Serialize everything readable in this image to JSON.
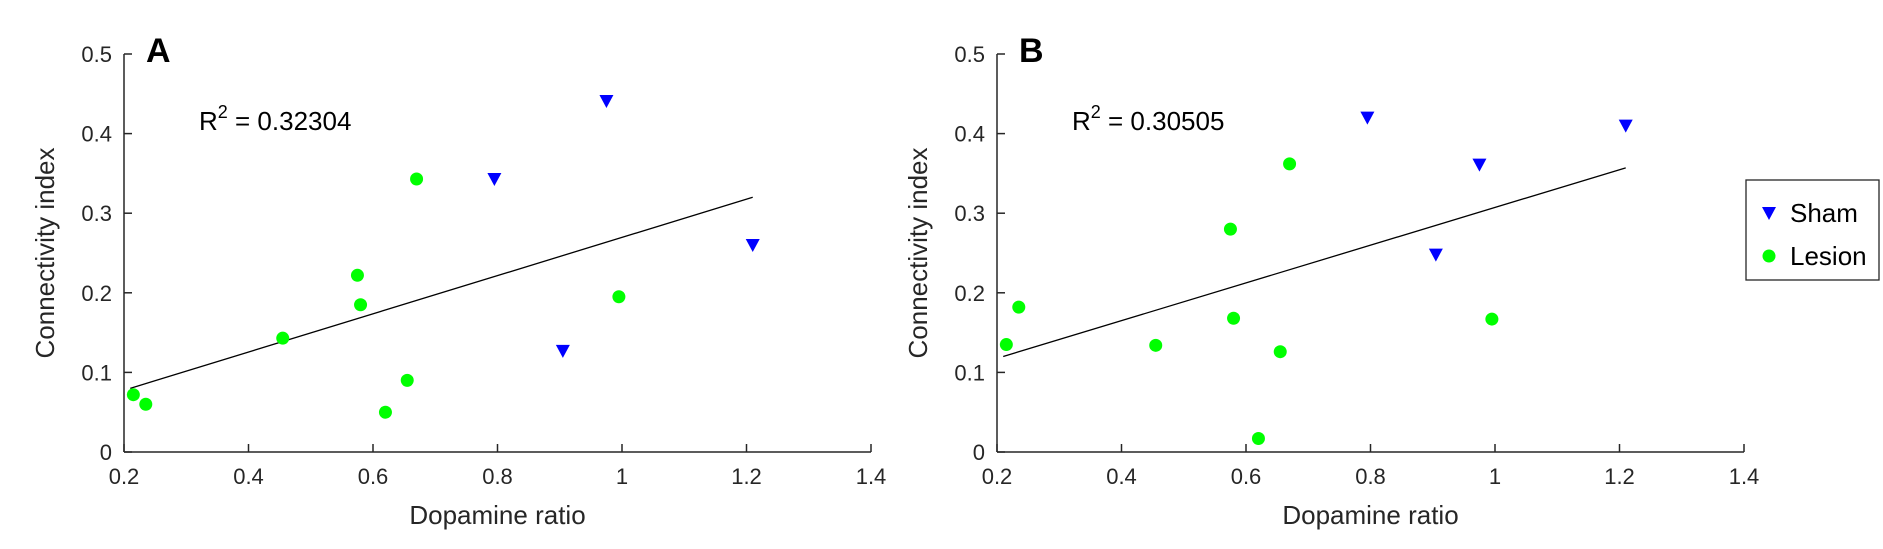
{
  "colors": {
    "sham": "#0000ff",
    "lesion": "#00ff00",
    "fit": "#000000",
    "axis": "#262626"
  },
  "legend": {
    "placement": "right-outside",
    "entries": [
      {
        "name": "Sham",
        "marker": "triangle-down"
      },
      {
        "name": "Lesion",
        "marker": "circle"
      }
    ]
  },
  "chart_data": [
    {
      "type": "scatter",
      "panel": "A",
      "xlabel": "Dopamine ratio",
      "ylabel": "Connectivity index",
      "xlim": [
        0.2,
        1.4
      ],
      "ylim": [
        0,
        0.5
      ],
      "xticks": [
        "0.2",
        "0.4",
        "0.6",
        "0.8",
        "1",
        "1.2",
        "1.4"
      ],
      "yticks": [
        "0",
        "0.1",
        "0.2",
        "0.3",
        "0.4",
        "0.5"
      ],
      "r2_label": "R",
      "r2_sup": "2",
      "r2_value": " = 0.32304",
      "fit": {
        "x": [
          0.21,
          1.21
        ],
        "y": [
          0.08,
          0.32
        ]
      },
      "series": [
        {
          "name": "Sham",
          "x": [
            0.795,
            0.975,
            0.905,
            1.21
          ],
          "y": [
            0.343,
            0.441,
            0.127,
            0.26
          ]
        },
        {
          "name": "Lesion",
          "x": [
            0.215,
            0.235,
            0.455,
            0.575,
            0.58,
            0.62,
            0.655,
            0.67,
            0.995
          ],
          "y": [
            0.072,
            0.06,
            0.143,
            0.222,
            0.185,
            0.05,
            0.09,
            0.343,
            0.195
          ]
        }
      ]
    },
    {
      "type": "scatter",
      "panel": "B",
      "xlabel": "Dopamine ratio",
      "ylabel": "Connectivity index",
      "xlim": [
        0.2,
        1.4
      ],
      "ylim": [
        0,
        0.5
      ],
      "xticks": [
        "0.2",
        "0.4",
        "0.6",
        "0.8",
        "1",
        "1.2",
        "1.4"
      ],
      "yticks": [
        "0",
        "0.1",
        "0.2",
        "0.3",
        "0.4",
        "0.5"
      ],
      "r2_label": "R",
      "r2_sup": "2",
      "r2_value": " = 0.30505",
      "fit": {
        "x": [
          0.21,
          1.21
        ],
        "y": [
          0.12,
          0.357
        ]
      },
      "series": [
        {
          "name": "Sham",
          "x": [
            0.795,
            0.975,
            0.905,
            1.21
          ],
          "y": [
            0.42,
            0.361,
            0.248,
            0.41
          ]
        },
        {
          "name": "Lesion",
          "x": [
            0.215,
            0.235,
            0.455,
            0.575,
            0.58,
            0.62,
            0.655,
            0.67,
            0.995
          ],
          "y": [
            0.135,
            0.182,
            0.134,
            0.28,
            0.168,
            0.017,
            0.126,
            0.362,
            0.167
          ]
        }
      ]
    }
  ]
}
